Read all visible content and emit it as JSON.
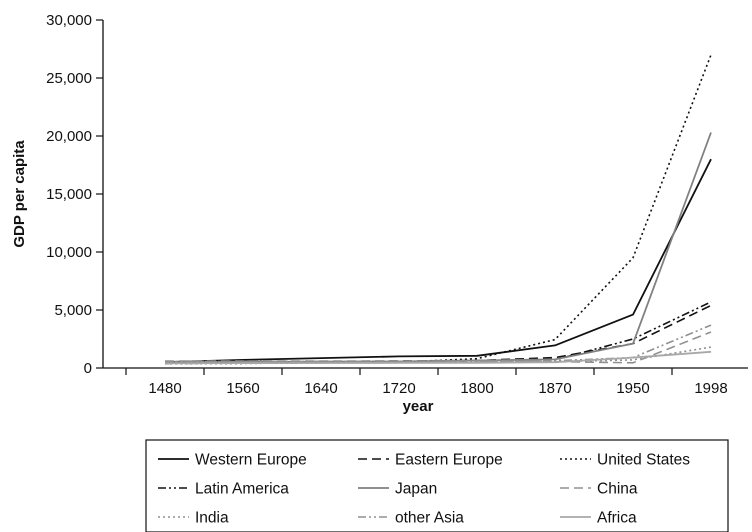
{
  "chart_data": {
    "type": "line",
    "xlabel": "year",
    "ylabel": "GDP per capita",
    "categories": [
      "1480",
      "1560",
      "1640",
      "1720",
      "1800",
      "1870",
      "1950",
      "1998"
    ],
    "y_ticks": [
      "0",
      "5,000",
      "10,000",
      "15,000",
      "20,000",
      "25,000",
      "30,000"
    ],
    "ylim": [
      0,
      30000
    ],
    "grid": false,
    "legend_position": "bottom",
    "series": [
      {
        "name": "Western Europe",
        "values": [
          500,
          700,
          850,
          1000,
          1050,
          1950,
          4600,
          18000
        ],
        "color": "#111111",
        "style": "solid"
      },
      {
        "name": "Eastern Europe",
        "values": [
          450,
          500,
          550,
          600,
          650,
          900,
          2100,
          5400
        ],
        "color": "#111111",
        "style": "dashed"
      },
      {
        "name": "United States",
        "values": [
          400,
          400,
          450,
          500,
          800,
          2450,
          9500,
          27000
        ],
        "color": "#111111",
        "style": "dotted"
      },
      {
        "name": "Latin America",
        "values": [
          400,
          420,
          450,
          500,
          600,
          700,
          2500,
          5700
        ],
        "color": "#111111",
        "style": "dashdotdot"
      },
      {
        "name": "Japan",
        "values": [
          500,
          520,
          550,
          570,
          650,
          740,
          2100,
          20300
        ],
        "color": "#808080",
        "style": "solid"
      },
      {
        "name": "China",
        "values": [
          600,
          600,
          600,
          600,
          600,
          550,
          450,
          3100
        ],
        "color": "#909090",
        "style": "dashed"
      },
      {
        "name": "India",
        "values": [
          550,
          550,
          550,
          550,
          550,
          550,
          700,
          1800
        ],
        "color": "#909090",
        "style": "dotted"
      },
      {
        "name": "other Asia",
        "values": [
          550,
          560,
          570,
          580,
          600,
          620,
          900,
          3700
        ],
        "color": "#909090",
        "style": "dashdotdot"
      },
      {
        "name": "Africa",
        "values": [
          400,
          420,
          430,
          440,
          450,
          500,
          900,
          1400
        ],
        "color": "#a8a8a8",
        "style": "solid"
      }
    ]
  }
}
